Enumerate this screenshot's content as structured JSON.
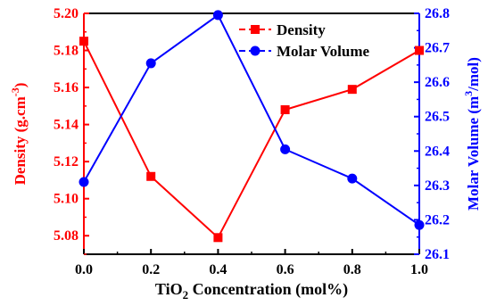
{
  "chart_data": {
    "type": "line",
    "x": [
      0.0,
      0.2,
      0.4,
      0.6,
      0.8,
      1.0
    ],
    "x_tick_labels": [
      "0.0",
      "0.2",
      "0.4",
      "0.6",
      "0.8",
      "1.0"
    ],
    "xlim": [
      0.0,
      1.0
    ],
    "xlabel": {
      "prefix": "TiO",
      "sub": "2",
      "suffix": " Concentration (mol%)"
    },
    "y_left": {
      "label": {
        "prefix": "Density (g.cm",
        "sup": "-3",
        "suffix": ")"
      },
      "ylim": [
        5.07,
        5.2
      ],
      "ticks": [
        5.08,
        5.1,
        5.12,
        5.14,
        5.16,
        5.18,
        5.2
      ],
      "tick_labels": [
        "5.08",
        "5.10",
        "5.12",
        "5.14",
        "5.16",
        "5.18",
        "5.20"
      ],
      "color": "#ff0000"
    },
    "y_right": {
      "label": {
        "prefix": "Molar Volume (m",
        "sup": "3",
        "suffix": "/mol)"
      },
      "ylim": [
        26.1,
        26.8
      ],
      "ticks": [
        26.1,
        26.2,
        26.3,
        26.4,
        26.5,
        26.6,
        26.7,
        26.8
      ],
      "tick_labels": [
        "26.1",
        "26.2",
        "26.3",
        "26.4",
        "26.5",
        "26.6",
        "26.7",
        "26.8"
      ],
      "color": "#0000ff"
    },
    "series": [
      {
        "name": "Density",
        "axis": "left",
        "marker": "square",
        "color": "#ff0000",
        "values": [
          5.185,
          5.112,
          5.079,
          5.148,
          5.159,
          5.18
        ]
      },
      {
        "name": "Molar Volume",
        "axis": "right",
        "marker": "circle",
        "color": "#0000ff",
        "values": [
          26.31,
          26.655,
          26.795,
          26.405,
          26.32,
          26.185
        ]
      }
    ],
    "legend": "top-right",
    "grid": false
  }
}
